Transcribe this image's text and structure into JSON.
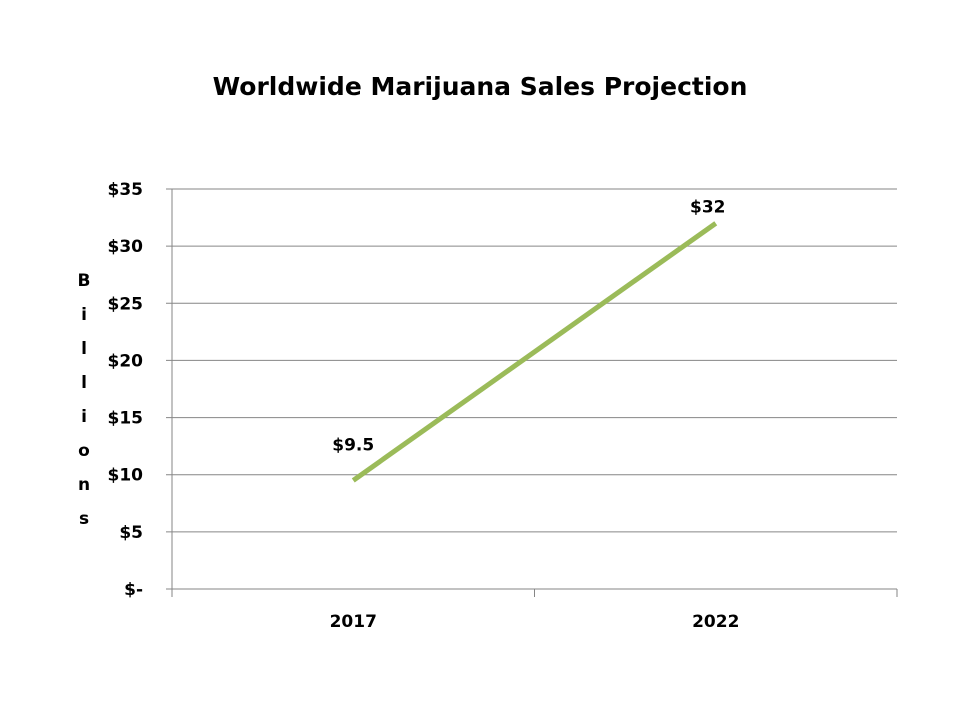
{
  "chart_data": {
    "type": "line",
    "title": "Worldwide Marijuana Sales Projection",
    "xlabel": "",
    "ylabel": "Billions",
    "categories": [
      "2017",
      "2022"
    ],
    "series": [
      {
        "name": "Sales",
        "values": [
          9.5,
          32
        ],
        "color": "#9BBB59"
      }
    ],
    "data_labels": [
      "$9.5",
      "$32"
    ],
    "ylim": [
      0,
      35
    ],
    "y_ticks": [
      0,
      5,
      10,
      15,
      20,
      25,
      30,
      35
    ],
    "y_tick_labels": [
      "$-",
      "$5",
      "$10",
      "$15",
      "$20",
      "$25",
      "$30",
      "$35"
    ],
    "grid": true,
    "legend": "none"
  },
  "colors": {
    "line": "#9BBB59",
    "grid": "#868686",
    "text": "#000000"
  }
}
